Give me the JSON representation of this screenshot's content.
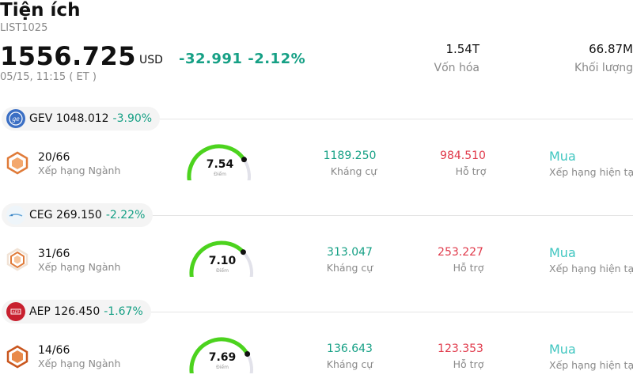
{
  "header": {
    "title": "Tiện ích",
    "code": "LIST1025",
    "price": "1556.725",
    "currency": "USD",
    "change": "-32.991",
    "change_pct": "-2.12%",
    "timestamp": "05/15, 11:15  ( ET )"
  },
  "stats": [
    {
      "value": "1.54T",
      "label": "Vốn hóa"
    },
    {
      "value": "66.87M",
      "label": "Khối lượng"
    }
  ],
  "rows": [
    {
      "ticker": "GEV",
      "price": "1048.012",
      "pct": "-3.90%",
      "rank": "20/66",
      "rank_label": "Xếp hạng Ngành",
      "score": "7.54",
      "score_label": "Điểm",
      "score_fraction": 0.754,
      "resistance": "1189.250",
      "resistance_label": "Kháng cự",
      "support": "984.510",
      "support_label": "Hỗ trợ",
      "rating": "Mua",
      "rating_label": "Xếp hạng hiện tại"
    },
    {
      "ticker": "CEG",
      "price": "269.150",
      "pct": "-2.22%",
      "rank": "31/66",
      "rank_label": "Xếp hạng Ngành",
      "score": "7.10",
      "score_label": "Điểm",
      "score_fraction": 0.71,
      "resistance": "313.047",
      "resistance_label": "Kháng cự",
      "support": "253.227",
      "support_label": "Hỗ trợ",
      "rating": "Mua",
      "rating_label": "Xếp hạng hiện tại"
    },
    {
      "ticker": "AEP",
      "price": "126.450",
      "pct": "-1.67%",
      "rank": "14/66",
      "rank_label": "Xếp hạng Ngành",
      "score": "7.69",
      "score_label": "Điểm",
      "score_fraction": 0.769,
      "resistance": "136.643",
      "resistance_label": "Kháng cự",
      "support": "123.353",
      "support_label": "Hỗ trợ",
      "rating": "Mua",
      "rating_label": "Xếp hạng hiện tại"
    }
  ],
  "colors": {
    "positive": "#16a085",
    "negative": "#e0394a",
    "gauge": "#4cd31e",
    "rating": "#40c6c0"
  }
}
